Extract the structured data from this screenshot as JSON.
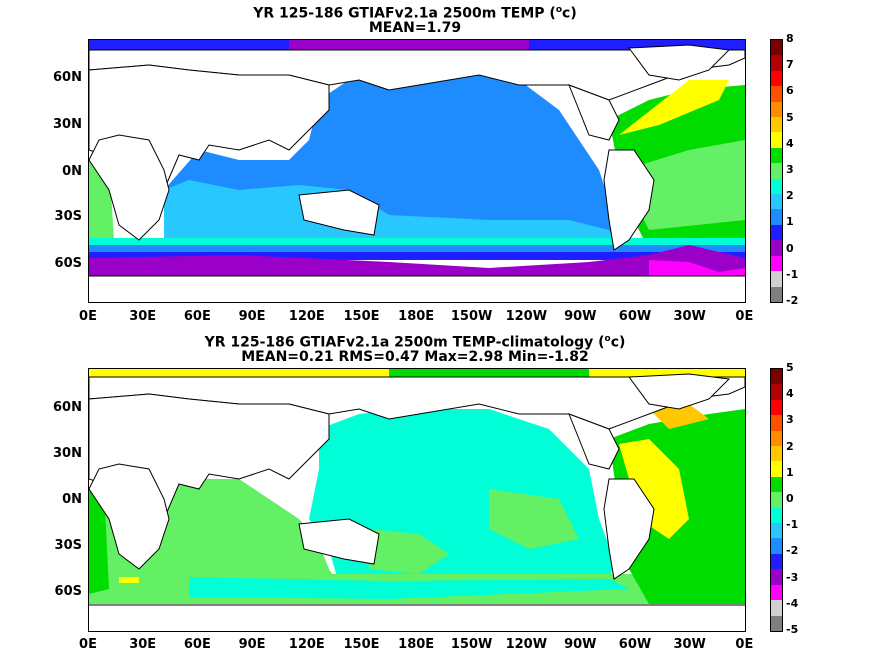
{
  "panel1": {
    "title_main": "YR 125-186 GTIAFv2.1a 2500m TEMP (",
    "title_sup": "o",
    "title_unit_end": "c)",
    "subtitle": "MEAN=1.79",
    "colorbar_labels": [
      "8",
      "7",
      "6",
      "5",
      "4",
      "3",
      "2",
      "1",
      "0",
      "-1",
      "-2"
    ]
  },
  "panel2": {
    "title_main": "YR 125-186 GTIAFv2.1a 2500m TEMP-climatology (",
    "title_sup": "o",
    "title_unit_end": "c)",
    "subtitle": "MEAN=0.21   RMS=0.47   Max=2.98   Min=-1.82",
    "colorbar_labels": [
      "5",
      "4",
      "3",
      "2",
      "1",
      "0",
      "-1",
      "-2",
      "-3",
      "-4",
      "-5"
    ]
  },
  "lat_labels": [
    "60N",
    "30N",
    "0N",
    "30S",
    "60S"
  ],
  "lon_labels": [
    "0E",
    "30E",
    "60E",
    "90E",
    "120E",
    "150E",
    "180E",
    "150W",
    "120W",
    "90W",
    "60W",
    "30W",
    "0E"
  ],
  "colorbar_colors": [
    "#7f7f7f",
    "#d0d0d0",
    "#ff00ff",
    "#9b00c8",
    "#1e1eff",
    "#1e8cff",
    "#28c8ff",
    "#00ffd7",
    "#64f064",
    "#00dc00",
    "#ffff00",
    "#ffc800",
    "#ff8c00",
    "#ff5000",
    "#ff0000",
    "#b40000",
    "#7a0000"
  ]
}
